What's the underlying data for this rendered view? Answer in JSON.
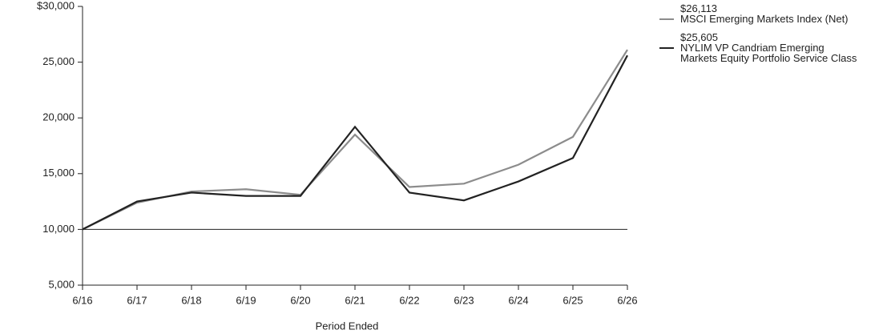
{
  "chart_data": {
    "type": "line",
    "x_label": "Period Ended",
    "categories": [
      "6/16",
      "6/17",
      "6/18",
      "6/19",
      "6/20",
      "6/21",
      "6/22",
      "6/23",
      "6/24",
      "6/25",
      "6/26"
    ],
    "series": [
      {
        "name": "MSCI Emerging Markets Index (Net)",
        "color": "#8c8c8c",
        "end_label": "$26,113",
        "values": [
          10000,
          12400,
          13400,
          13600,
          13100,
          18500,
          13800,
          14100,
          15800,
          18300,
          26113
        ]
      },
      {
        "name": "NYLIM VP Candriam Emerging Markets Equity Portfolio Service Class",
        "color": "#222222",
        "end_label": "$25,605",
        "values": [
          10000,
          12500,
          13300,
          13000,
          13000,
          19200,
          13300,
          12600,
          14300,
          16400,
          25605
        ]
      }
    ],
    "ylim": [
      5000,
      30000
    ],
    "yticks": [
      {
        "value": 5000,
        "label": "5,000"
      },
      {
        "value": 10000,
        "label": "10,000"
      },
      {
        "value": 15000,
        "label": "15,000"
      },
      {
        "value": 20000,
        "label": "20,000"
      },
      {
        "value": 25000,
        "label": "25,000"
      },
      {
        "value": 30000,
        "label": "$30,000"
      }
    ],
    "reference_line": 10000,
    "legend": "right"
  }
}
